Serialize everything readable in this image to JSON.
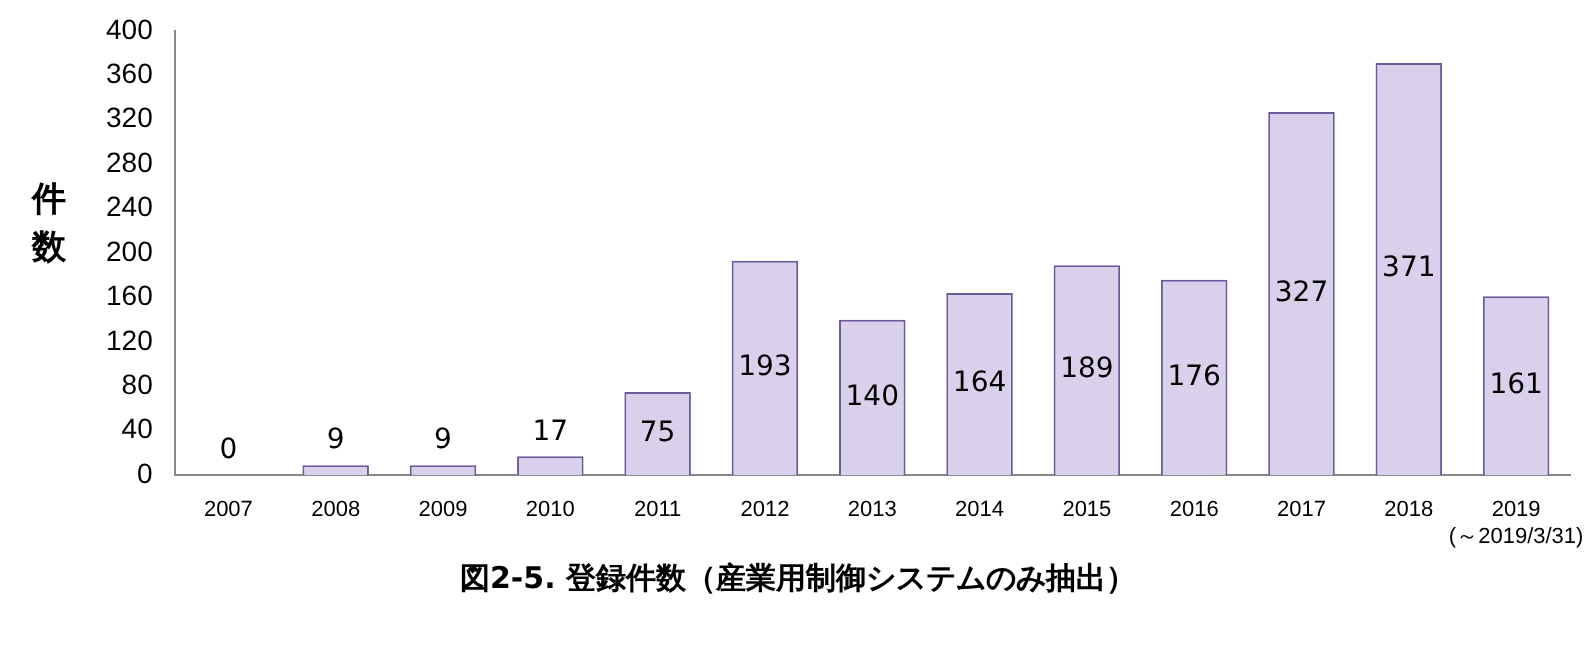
{
  "chart_data": {
    "type": "bar",
    "title": "図2-5. 登録件数（産業用制御システムのみ抽出）",
    "ylabel": "件数",
    "categories": [
      "2007",
      "2008",
      "2009",
      "2010",
      "2011",
      "2012",
      "2013",
      "2014",
      "2015",
      "2016",
      "2017",
      "2018",
      "2019\n(～2019/3/31)"
    ],
    "series": [
      {
        "color": "#d9d0ec",
        "values": [
          0,
          9,
          9,
          17,
          75,
          193,
          140,
          164,
          189,
          176,
          327,
          371,
          161
        ]
      }
    ],
    "ylim": [
      0,
      400
    ],
    "yticks": [
      0,
      40,
      80,
      120,
      160,
      200,
      240,
      280,
      320,
      360,
      400
    ],
    "grid": false,
    "legend": false,
    "data_labels": true
  }
}
